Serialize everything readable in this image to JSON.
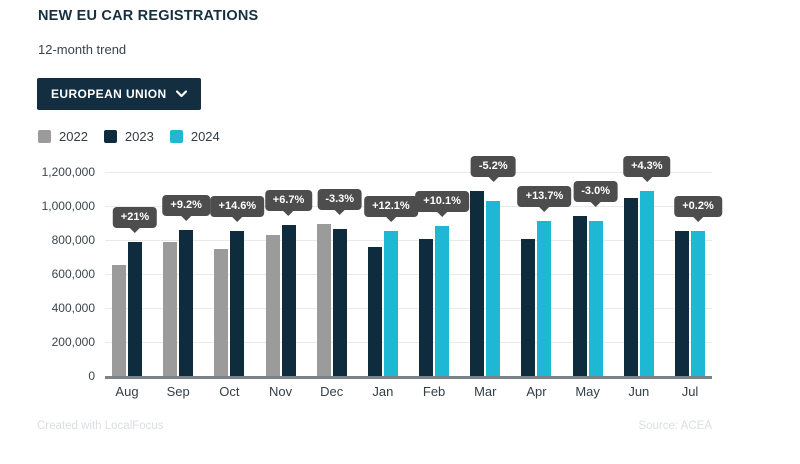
{
  "header": {
    "title": "NEW EU CAR REGISTRATIONS",
    "subtitle": "12-month trend"
  },
  "controls": {
    "region_dropdown": {
      "label": "EUROPEAN UNION",
      "icon": "chevron-down-icon"
    }
  },
  "colors": {
    "brand_navy": "#122e40",
    "bar_2022_gray": "#9b9b9b",
    "bar_2023_navy": "#0f2c3e",
    "bar_2024_cyan": "#1eb8d4",
    "tooltip_bg": "#4d4d4d",
    "gridline": "#e9e9e9",
    "axis": "#7d8286"
  },
  "chart_data": {
    "type": "bar",
    "title": "NEW EU CAR REGISTRATIONS",
    "xlabel": "",
    "ylabel": "",
    "ylim": [
      0,
      1200000
    ],
    "ytick_step": 200000,
    "grid": true,
    "legend_position": "top",
    "categories": [
      "Aug",
      "Sep",
      "Oct",
      "Nov",
      "Dec",
      "Jan",
      "Feb",
      "Mar",
      "Apr",
      "May",
      "Jun",
      "Jul"
    ],
    "series": [
      {
        "name": "2022",
        "color": "#9b9b9b",
        "values": [
          650000,
          788000,
          746000,
          830000,
          897000,
          null,
          null,
          null,
          null,
          null,
          null,
          null
        ]
      },
      {
        "name": "2023",
        "color": "#0f2c3e",
        "values": [
          787000,
          861000,
          855000,
          886000,
          867000,
          760000,
          803000,
          1088000,
          804000,
          939000,
          1045000,
          851000
        ]
      },
      {
        "name": "2024",
        "color": "#1eb8d4",
        "values": [
          null,
          null,
          null,
          null,
          null,
          852000,
          884000,
          1032000,
          914000,
          911000,
          1090000,
          852000
        ]
      }
    ],
    "point_labels": [
      "+21%",
      "+9.2%",
      "+14.6%",
      "+6.7%",
      "-3.3%",
      "+12.1%",
      "+10.1%",
      "-5.2%",
      "+13.7%",
      "-3.0%",
      "+4.3%",
      "+0.2%"
    ]
  },
  "footer": {
    "created": "Created with LocalFocus",
    "source": "Source: ACEA"
  }
}
